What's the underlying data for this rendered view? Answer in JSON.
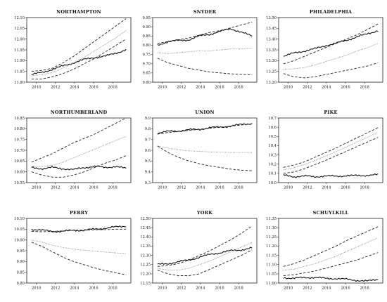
{
  "chart_data": [
    {
      "type": "line",
      "title": "NORTHAMPTON",
      "xlim": [
        2009,
        2019.9
      ],
      "ylim": [
        11.8,
        12.1
      ],
      "x_ticks": [
        "2010",
        "2012",
        "2014",
        "2016",
        "2018"
      ],
      "y_ticks": [
        "11.80",
        "11.85",
        "11.90",
        "11.95",
        "12.00",
        "12.05",
        "12.10"
      ],
      "series": [
        {
          "style": "solid",
          "values": [
            11.835,
            11.845,
            11.86,
            11.875,
            11.89,
            11.905,
            11.915,
            11.92,
            11.935,
            11.95
          ]
        },
        {
          "style": "dotted",
          "values": [
            11.83,
            11.835,
            11.845,
            11.865,
            11.89,
            11.915,
            11.945,
            11.975,
            12.005,
            12.04
          ]
        },
        {
          "style": "dashed",
          "values": [
            11.85,
            11.855,
            11.865,
            11.89,
            11.92,
            11.955,
            11.99,
            12.025,
            12.06,
            12.095
          ]
        },
        {
          "style": "dashed",
          "values": [
            11.815,
            11.815,
            11.825,
            11.84,
            11.86,
            11.885,
            11.91,
            11.94,
            11.97,
            12.0
          ]
        }
      ]
    },
    {
      "type": "line",
      "title": "SNYDER",
      "xlim": [
        2009,
        2019.9
      ],
      "ylim": [
        9.6,
        9.95
      ],
      "x_ticks": [
        "2010",
        "2012",
        "2014",
        "2016",
        "2018"
      ],
      "y_ticks": [
        "9.60",
        "9.65",
        "9.70",
        "9.75",
        "9.80",
        "9.85",
        "9.90",
        "9.95"
      ],
      "series": [
        {
          "style": "solid",
          "values": [
            9.8,
            9.82,
            9.825,
            9.83,
            9.85,
            9.86,
            9.875,
            9.89,
            9.87,
            9.85
          ]
        },
        {
          "style": "dotted",
          "values": [
            9.76,
            9.755,
            9.76,
            9.765,
            9.77,
            9.77,
            9.775,
            9.78,
            9.78,
            9.785
          ]
        },
        {
          "style": "dashed",
          "values": [
            9.81,
            9.82,
            9.83,
            9.84,
            9.855,
            9.87,
            9.88,
            9.895,
            9.91,
            9.925
          ]
        },
        {
          "style": "dashed",
          "values": [
            9.73,
            9.705,
            9.69,
            9.675,
            9.665,
            9.655,
            9.65,
            9.645,
            9.642,
            9.64
          ]
        }
      ]
    },
    {
      "type": "line",
      "title": "PHILADELPHIA",
      "xlim": [
        2009,
        2019.9
      ],
      "ylim": [
        13.2,
        13.5
      ],
      "x_ticks": [
        "2010",
        "2012",
        "2014",
        "2016",
        "2018"
      ],
      "y_ticks": [
        "13.20",
        "13.25",
        "13.30",
        "13.35",
        "13.40",
        "13.45",
        "13.50"
      ],
      "series": [
        {
          "style": "solid",
          "values": [
            13.32,
            13.335,
            13.345,
            13.355,
            13.37,
            13.38,
            13.395,
            13.41,
            13.425,
            13.44
          ]
        },
        {
          "style": "dotted",
          "values": [
            13.26,
            13.262,
            13.268,
            13.28,
            13.295,
            13.31,
            13.325,
            13.345,
            13.36,
            13.38
          ]
        },
        {
          "style": "dashed",
          "values": [
            13.285,
            13.3,
            13.32,
            13.34,
            13.36,
            13.38,
            13.4,
            13.42,
            13.445,
            13.47
          ]
        },
        {
          "style": "dashed",
          "values": [
            13.24,
            13.225,
            13.22,
            13.225,
            13.235,
            13.245,
            13.255,
            13.265,
            13.275,
            13.29
          ]
        }
      ]
    },
    {
      "type": "line",
      "title": "NORTHUMBERLAND",
      "xlim": [
        2009,
        2019.9
      ],
      "ylim": [
        10.55,
        10.85
      ],
      "x_ticks": [
        "2010",
        "2012",
        "2014",
        "2016",
        "2018"
      ],
      "y_ticks": [
        "10.55",
        "10.60",
        "10.65",
        "10.70",
        "10.75",
        "10.80",
        "10.85"
      ],
      "series": [
        {
          "style": "solid",
          "values": [
            10.62,
            10.615,
            10.62,
            10.615,
            10.61,
            10.62,
            10.625,
            10.62,
            10.625,
            10.615
          ]
        },
        {
          "style": "dotted",
          "values": [
            10.625,
            10.625,
            10.63,
            10.645,
            10.665,
            10.685,
            10.705,
            10.725,
            10.745,
            10.765
          ]
        },
        {
          "style": "dashed",
          "values": [
            10.645,
            10.665,
            10.685,
            10.71,
            10.735,
            10.755,
            10.775,
            10.8,
            10.825,
            10.85
          ]
        },
        {
          "style": "dashed",
          "values": [
            10.6,
            10.585,
            10.575,
            10.575,
            10.585,
            10.6,
            10.62,
            10.64,
            10.655,
            10.675
          ]
        }
      ]
    },
    {
      "type": "line",
      "title": "UNION",
      "xlim": [
        2009,
        2019.9
      ],
      "ylim": [
        9.3,
        9.9
      ],
      "x_ticks": [
        "2010",
        "2012",
        "2014",
        "2016",
        "2018"
      ],
      "y_ticks": [
        "9.3",
        "9.4",
        "9.5",
        "9.6",
        "9.7",
        "9.8",
        "9.9"
      ],
      "series": [
        {
          "style": "solid",
          "values": [
            9.76,
            9.775,
            9.78,
            9.79,
            9.795,
            9.81,
            9.815,
            9.825,
            9.84,
            9.85
          ]
        },
        {
          "style": "dotted",
          "values": [
            9.64,
            9.62,
            9.605,
            9.595,
            9.59,
            9.585,
            9.585,
            9.58,
            9.58,
            9.58
          ]
        },
        {
          "style": "dashed",
          "values": [
            9.75,
            9.765,
            9.775,
            9.785,
            9.795,
            9.805,
            9.815,
            9.825,
            9.835,
            9.845
          ]
        },
        {
          "style": "dashed",
          "values": [
            9.64,
            9.58,
            9.535,
            9.5,
            9.475,
            9.455,
            9.44,
            9.425,
            9.415,
            9.41
          ]
        }
      ]
    },
    {
      "type": "line",
      "title": "PIKE",
      "xlim": [
        2009,
        2019.9
      ],
      "ylim": [
        10,
        10.7
      ],
      "x_ticks": [
        "2010",
        "2012",
        "2014",
        "2016",
        "2018"
      ],
      "y_ticks": [
        "10.0",
        "10.1",
        "10.2",
        "10.3",
        "10.4",
        "10.5",
        "10.6",
        "10.7"
      ],
      "series": [
        {
          "style": "solid",
          "values": [
            10.08,
            10.065,
            10.07,
            10.065,
            10.07,
            10.07,
            10.075,
            10.075,
            10.08,
            10.085
          ]
        },
        {
          "style": "dotted",
          "values": [
            10.14,
            10.16,
            10.195,
            10.24,
            10.285,
            10.335,
            10.385,
            10.44,
            10.49,
            10.545
          ]
        },
        {
          "style": "dashed",
          "values": [
            10.165,
            10.19,
            10.225,
            10.275,
            10.325,
            10.375,
            10.43,
            10.485,
            10.54,
            10.595
          ]
        },
        {
          "style": "dashed",
          "values": [
            10.1,
            10.115,
            10.15,
            10.195,
            10.24,
            10.29,
            10.34,
            10.39,
            10.44,
            10.49
          ]
        }
      ]
    },
    {
      "type": "line",
      "title": "PERRY",
      "xlim": [
        2009,
        2019.9
      ],
      "ylim": [
        9.8,
        10.1
      ],
      "x_ticks": [
        "2010",
        "2012",
        "2014",
        "2016",
        "2018"
      ],
      "y_ticks": [
        "9.80",
        "9.85",
        "9.90",
        "9.95",
        "10.00",
        "10.05",
        "10.10"
      ],
      "series": [
        {
          "style": "solid",
          "values": [
            10.05,
            10.045,
            10.04,
            10.04,
            10.045,
            10.045,
            10.05,
            10.055,
            10.06,
            10.065
          ]
        },
        {
          "style": "dotted",
          "values": [
            10.0,
            9.99,
            9.975,
            9.965,
            9.958,
            9.952,
            9.948,
            9.944,
            9.94,
            9.937
          ]
        },
        {
          "style": "dashed",
          "values": [
            10.04,
            10.038,
            10.04,
            10.042,
            10.045,
            10.046,
            10.047,
            10.048,
            10.05,
            10.05
          ]
        },
        {
          "style": "dashed",
          "values": [
            9.99,
            9.97,
            9.945,
            9.92,
            9.9,
            9.885,
            9.87,
            9.858,
            9.848,
            9.838
          ]
        }
      ]
    },
    {
      "type": "line",
      "title": "YORK",
      "xlim": [
        2009,
        2019.9
      ],
      "ylim": [
        12.15,
        12.5
      ],
      "x_ticks": [
        "2010",
        "2012",
        "2014",
        "2016",
        "2018"
      ],
      "y_ticks": [
        "12.15",
        "12.20",
        "12.25",
        "12.30",
        "12.35",
        "12.40",
        "12.45",
        "12.50"
      ],
      "series": [
        {
          "style": "solid",
          "values": [
            12.25,
            12.255,
            12.265,
            12.275,
            12.29,
            12.305,
            12.315,
            12.325,
            12.33,
            12.34
          ]
        },
        {
          "style": "dotted",
          "values": [
            12.23,
            12.22,
            12.22,
            12.23,
            12.25,
            12.27,
            12.295,
            12.32,
            12.345,
            12.37
          ]
        },
        {
          "style": "dashed",
          "values": [
            12.24,
            12.245,
            12.255,
            12.275,
            12.3,
            12.325,
            12.355,
            12.385,
            12.42,
            12.46
          ]
        },
        {
          "style": "dashed",
          "values": [
            12.22,
            12.2,
            12.19,
            12.19,
            12.2,
            12.225,
            12.25,
            12.275,
            12.3,
            12.33
          ]
        }
      ]
    },
    {
      "type": "line",
      "title": "SCHUYLKILL",
      "xlim": [
        2009,
        2019.9
      ],
      "ylim": [
        11,
        11.35
      ],
      "x_ticks": [
        "2010",
        "2012",
        "2014",
        "2016",
        "2018"
      ],
      "y_ticks": [
        "11.00",
        "11.05",
        "11.10",
        "11.15",
        "11.20",
        "11.25",
        "11.30",
        "11.35"
      ],
      "series": [
        {
          "style": "solid",
          "values": [
            11.03,
            11.025,
            11.03,
            11.03,
            11.025,
            11.025,
            11.02,
            11.015,
            11.01,
            11.02
          ]
        },
        {
          "style": "dotted",
          "values": [
            11.07,
            11.075,
            11.09,
            11.105,
            11.125,
            11.145,
            11.17,
            11.195,
            11.22,
            11.245
          ]
        },
        {
          "style": "dashed",
          "values": [
            11.09,
            11.105,
            11.125,
            11.15,
            11.175,
            11.2,
            11.23,
            11.255,
            11.28,
            11.305
          ]
        },
        {
          "style": "dashed",
          "values": [
            11.04,
            11.045,
            11.055,
            11.065,
            11.08,
            11.095,
            11.11,
            11.125,
            11.145,
            11.165
          ]
        }
      ]
    }
  ]
}
